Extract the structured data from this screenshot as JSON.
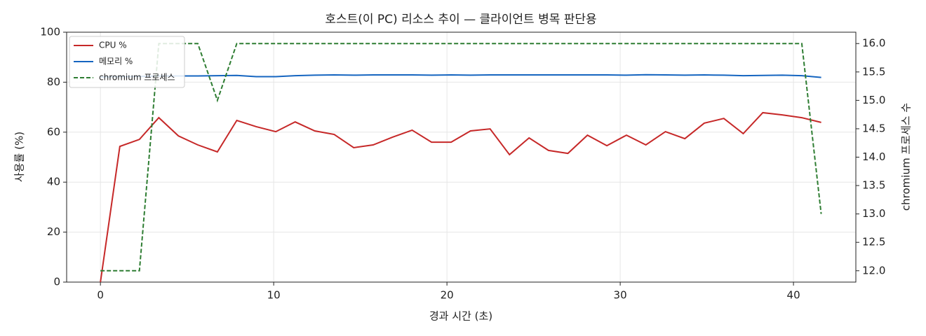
{
  "chart_data": {
    "type": "line",
    "title": "호스트(이 PC) 리소스 추이 — 클라이언트 병목 판단용",
    "x_label": "경과 시간 (초)",
    "y_label": "사용률 (%)",
    "y2_label": "chromium 프로세스 수",
    "x": [
      0,
      1.12,
      2.25,
      3.37,
      4.5,
      5.62,
      6.75,
      7.87,
      8.99,
      10.12,
      11.24,
      12.37,
      13.49,
      14.62,
      15.74,
      16.86,
      17.99,
      19.11,
      20.24,
      21.36,
      22.49,
      23.61,
      24.74,
      25.86,
      26.98,
      28.11,
      29.23,
      30.36,
      31.48,
      32.61,
      33.73,
      34.85,
      35.98,
      37.1,
      38.23,
      39.35,
      40.48,
      41.6
    ],
    "series": [
      {
        "name": "CPU %",
        "color": "#c62828",
        "linestyle": "solid",
        "axis": "y",
        "values": [
          0,
          54.3,
          57.1,
          65.8,
          58.5,
          54.9,
          52.1,
          64.7,
          62.2,
          60.2,
          64.1,
          60.5,
          59.1,
          53.8,
          54.9,
          58,
          60.8,
          56,
          56,
          60.5,
          61.3,
          51,
          57.7,
          52.7,
          51.5,
          58.8,
          54.6,
          58.8,
          54.9,
          60.2,
          57.4,
          63.6,
          65.5,
          59.4,
          67.8,
          66.9,
          65.8,
          63.9
        ]
      },
      {
        "name": "메모리 %",
        "color": "#1565c0",
        "linestyle": "solid",
        "axis": "y",
        "values": [
          82.0,
          82.2,
          82.3,
          82.5,
          82.5,
          82.5,
          82.6,
          82.7,
          82.2,
          82.2,
          82.6,
          82.8,
          82.9,
          82.8,
          82.9,
          82.9,
          82.9,
          82.8,
          82.9,
          82.8,
          82.9,
          82.9,
          82.9,
          82.9,
          82.9,
          82.9,
          82.9,
          82.8,
          83.0,
          82.9,
          82.8,
          82.9,
          82.8,
          82.6,
          82.7,
          82.8,
          82.6,
          81.9
        ]
      },
      {
        "name": "chromium 프로세스",
        "color": "#2e7d32",
        "linestyle": "dashed",
        "axis": "y2",
        "values": [
          12,
          12,
          12,
          16,
          16,
          16,
          15,
          16,
          16,
          16,
          16,
          16,
          16,
          16,
          16,
          16,
          16,
          16,
          16,
          16,
          16,
          16,
          16,
          16,
          16,
          16,
          16,
          16,
          16,
          16,
          16,
          16,
          16,
          16,
          16,
          16,
          16,
          13
        ]
      }
    ],
    "xlim": [
      -1.95,
      43.6
    ],
    "xticks": [
      0,
      10,
      20,
      30,
      40
    ],
    "ylim": [
      0,
      100
    ],
    "yticks": [
      0,
      20,
      40,
      60,
      80,
      100
    ],
    "y2lim": [
      11.8,
      16.2
    ],
    "y2ticks": [
      {
        "value": 12,
        "label": "12.0"
      },
      {
        "value": 12.5,
        "label": "12.5"
      },
      {
        "value": 13,
        "label": "13.0"
      },
      {
        "value": 13.5,
        "label": "13.5"
      },
      {
        "value": 14,
        "label": "14.0"
      },
      {
        "value": 14.5,
        "label": "14.5"
      },
      {
        "value": 15,
        "label": "15.0"
      },
      {
        "value": 15.5,
        "label": "15.5"
      },
      {
        "value": 16,
        "label": "16.0"
      }
    ],
    "grid": true,
    "legend": "upper-left"
  }
}
